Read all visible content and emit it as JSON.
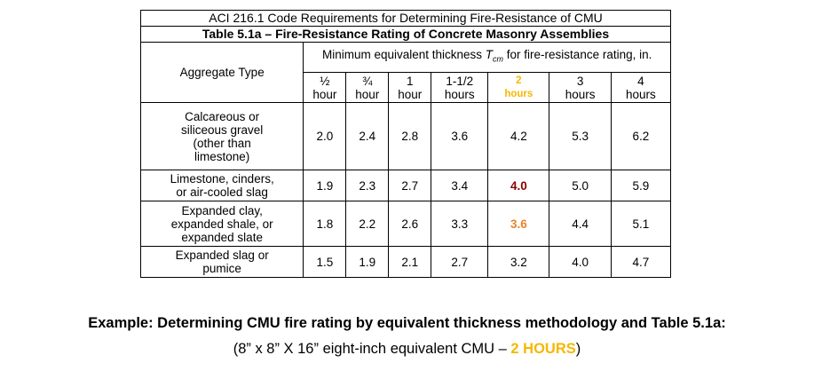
{
  "table": {
    "code_title": "ACI 216.1 Code Requirements for Determining Fire-Resistance of CMU",
    "table_title": "Table 5.1a – Fire-Resistance Rating of Concrete Masonry Assemblies",
    "aggregate_header": "Aggregate Type",
    "thickness_header_pre": "Minimum equivalent thickness ",
    "thickness_header_T": "T",
    "thickness_header_sub": "cm",
    "thickness_header_post": " for fire-resistance rating, in.",
    "columns": [
      {
        "num": "½",
        "unit": "hour"
      },
      {
        "num": "¾",
        "unit": "hour"
      },
      {
        "num": "1",
        "unit": "hour"
      },
      {
        "num": "1-1/2",
        "unit": "hours"
      },
      {
        "num": "2",
        "unit": "hours"
      },
      {
        "num": "3",
        "unit": "hours"
      },
      {
        "num": "4",
        "unit": "hours"
      }
    ],
    "rows": [
      {
        "aggregate": [
          "Calcareous or",
          "siliceous gravel",
          "(other than",
          "limestone)"
        ],
        "values": [
          "2.0",
          "2.4",
          "2.8",
          "3.6",
          "4.2",
          "5.3",
          "6.2"
        ]
      },
      {
        "aggregate": [
          "Limestone, cinders,",
          "or air-cooled slag"
        ],
        "values": [
          "1.9",
          "2.3",
          "2.7",
          "3.4",
          "4.0",
          "5.0",
          "5.9"
        ]
      },
      {
        "aggregate": [
          "Expanded clay,",
          "expanded shale, or",
          "expanded slate"
        ],
        "values": [
          "1.8",
          "2.2",
          "2.6",
          "3.3",
          "3.6",
          "4.4",
          "5.1"
        ]
      },
      {
        "aggregate": [
          "Expanded slag or",
          "pumice"
        ],
        "values": [
          "1.5",
          "1.9",
          "2.1",
          "2.7",
          "3.2",
          "4.0",
          "4.7"
        ]
      }
    ]
  },
  "caption": {
    "line1": "Example: Determining CMU fire rating by equivalent thickness methodology and Table 5.1a:",
    "line2_pre": "(8” x 8” X 16” eight-inch equivalent CMU – ",
    "line2_highlight": "2 HOURS",
    "line2_post": ")"
  },
  "colors": {
    "highlight_yellow": "#f5b800",
    "value_red": "#8b0000",
    "value_orange": "#e8852a"
  }
}
